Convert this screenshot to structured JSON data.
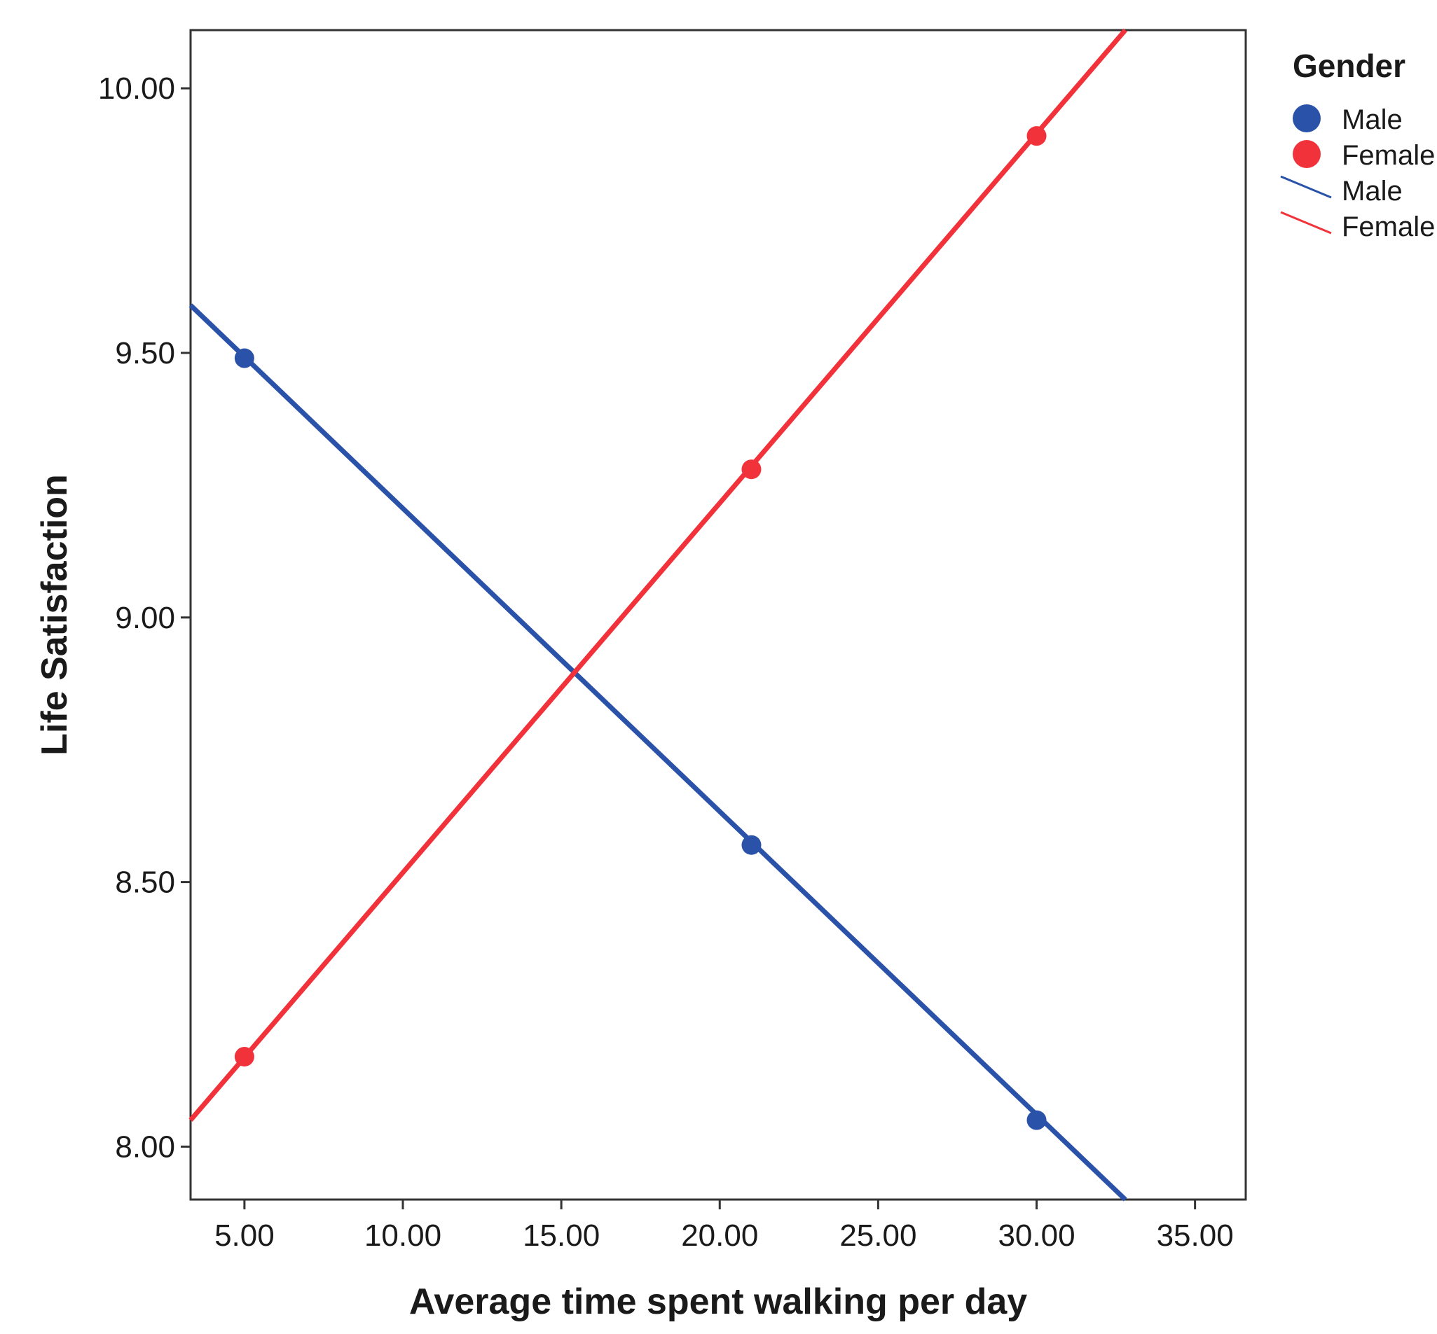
{
  "chart_data": {
    "type": "line",
    "xlabel": "Average time spent walking per day",
    "ylabel": "Life Satisfaction",
    "xlim": [
      3.3,
      36.6
    ],
    "ylim": [
      7.9,
      10.11
    ],
    "xticks": [
      5,
      10,
      15,
      20,
      25,
      30,
      35
    ],
    "xtick_labels": [
      "5.00",
      "10.00",
      "15.00",
      "20.00",
      "25.00",
      "30.00",
      "35.00"
    ],
    "yticks": [
      8,
      8.5,
      9,
      9.5,
      10
    ],
    "ytick_labels": [
      "8.00",
      "8.50",
      "9.00",
      "9.50",
      "10.00"
    ],
    "grid": false,
    "legend_position": "top-right",
    "legend_title": "Gender",
    "legend_entries": [
      {
        "label": "Male",
        "kind": "marker",
        "color": "#2a52a8"
      },
      {
        "label": "Female",
        "kind": "marker",
        "color": "#f2323a"
      },
      {
        "label": "Male",
        "kind": "line",
        "color": "#2a52a8"
      },
      {
        "label": "Female",
        "kind": "line",
        "color": "#f2323a"
      }
    ],
    "series": [
      {
        "name": "Male",
        "color": "#2a52a8",
        "points": [
          {
            "x": 5.0,
            "y": 9.49
          },
          {
            "x": 21.0,
            "y": 8.57
          },
          {
            "x": 30.0,
            "y": 8.05
          }
        ],
        "fit_line": [
          {
            "x": 3.3,
            "y": 9.59
          },
          {
            "x": 32.8,
            "y": 7.9
          }
        ]
      },
      {
        "name": "Female",
        "color": "#f2323a",
        "points": [
          {
            "x": 5.0,
            "y": 8.17
          },
          {
            "x": 21.0,
            "y": 9.28
          },
          {
            "x": 30.0,
            "y": 9.91
          }
        ],
        "fit_line": [
          {
            "x": 3.3,
            "y": 8.05
          },
          {
            "x": 32.8,
            "y": 10.11
          }
        ]
      }
    ]
  }
}
